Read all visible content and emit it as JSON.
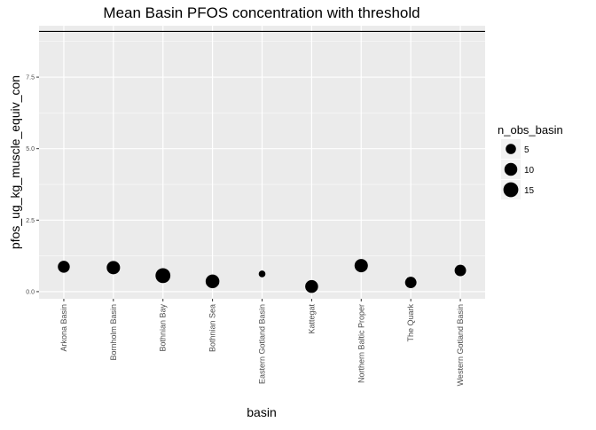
{
  "chart_data": {
    "type": "scatter",
    "title": "Mean Basin PFOS concentration with threshold",
    "xlabel": "basin",
    "ylabel": "pfos_ug_kg_muscle_equiv_con",
    "categories": [
      "Arkona Basin",
      "Bornholm Basin",
      "Bothnian Bay",
      "Bothnian Sea",
      "Eastern Gotland Basin",
      "Kattegat",
      "Northern Baltic Proper",
      "The Quark",
      "Western Gotland Basin"
    ],
    "values": [
      0.87,
      0.84,
      0.56,
      0.36,
      0.62,
      0.18,
      0.91,
      0.32,
      0.74
    ],
    "n_obs_basin": [
      8,
      11,
      15,
      12,
      1,
      10,
      11,
      7,
      7
    ],
    "threshold": 9.1,
    "ylim": [
      -0.25,
      9.3
    ],
    "yticks": [
      0.0,
      2.5,
      5.0,
      7.5
    ],
    "ytick_labels": [
      "0.0",
      "2.5",
      "5.0",
      "7.5"
    ],
    "grid": true,
    "legend": {
      "title": "n_obs_basin",
      "placement": "right",
      "entries": [
        {
          "label": "5",
          "value": 5
        },
        {
          "label": "10",
          "value": 10
        },
        {
          "label": "15",
          "value": 15
        }
      ]
    },
    "colors": {
      "panel": "#EBEBEB",
      "grid": "#FFFFFF",
      "point": "#000000",
      "threshold": "#000000",
      "legend_key": "#F2F2F2"
    }
  }
}
